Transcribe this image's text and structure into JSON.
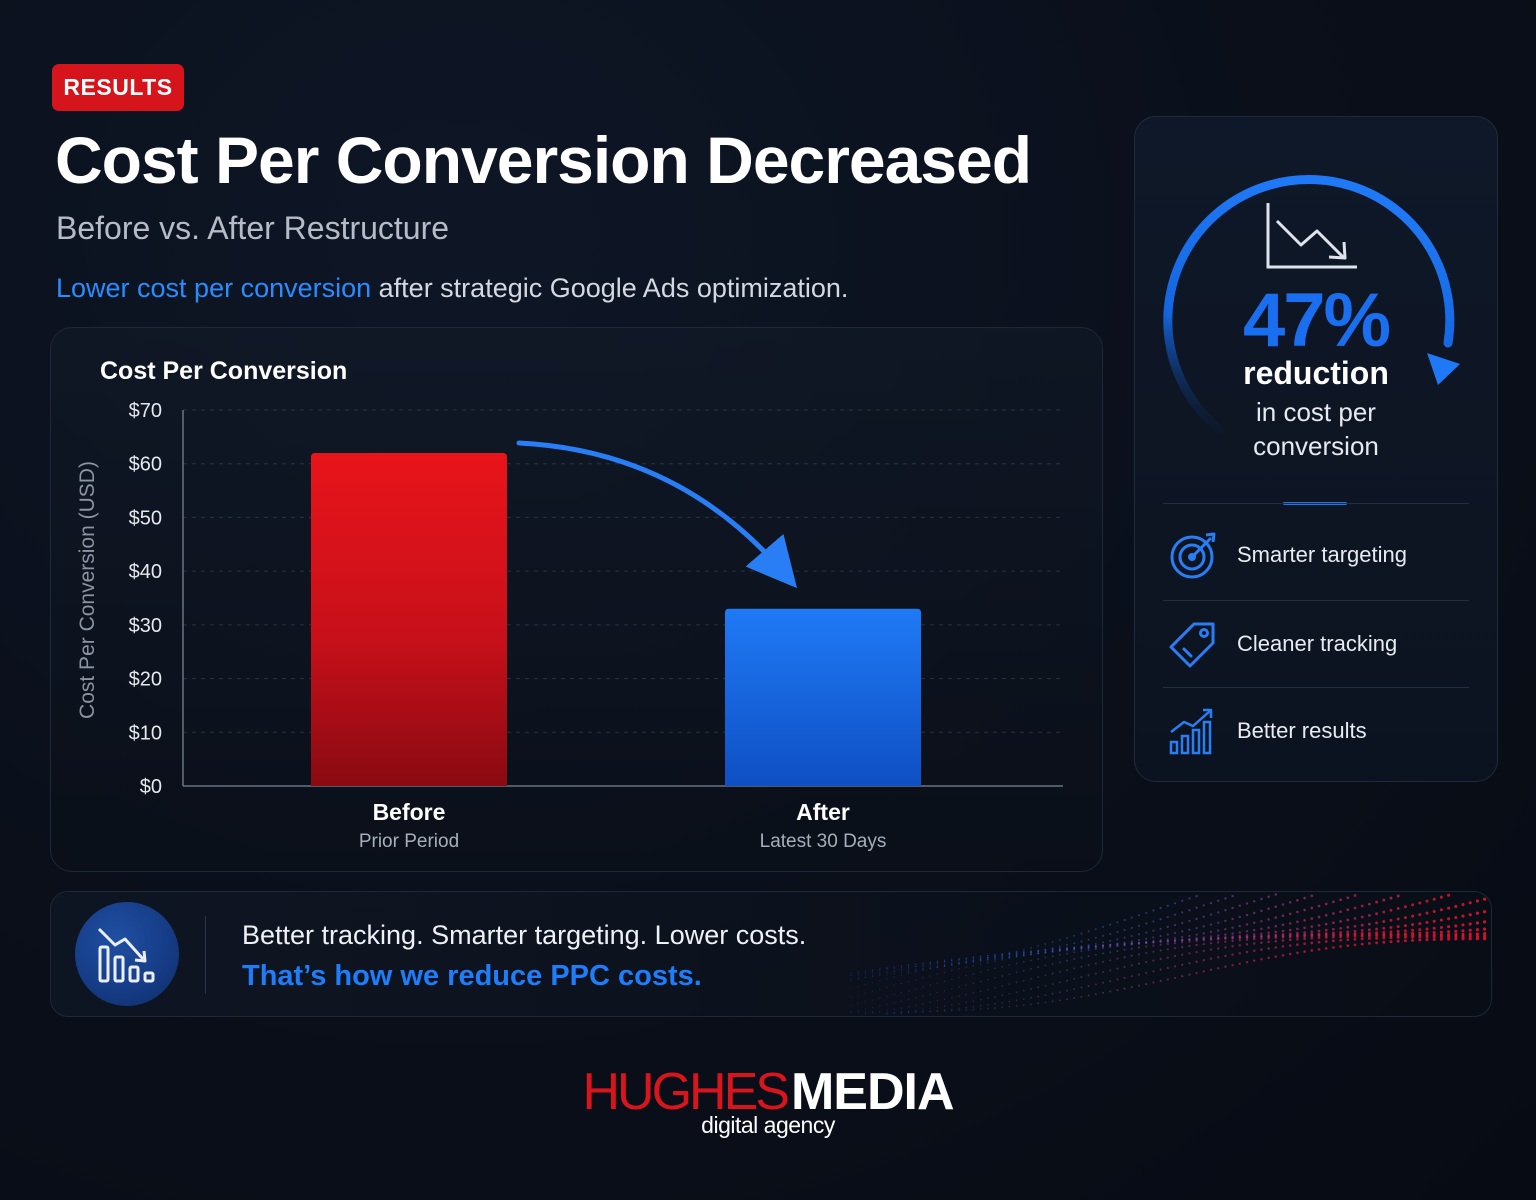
{
  "badge": "RESULTS",
  "title": "Cost Per Conversion Decreased",
  "subtitle": "Before vs. After Restructure",
  "description": {
    "highlight": "Lower cost per conversion",
    "rest": " after strategic Google Ads optimization."
  },
  "chart_data": {
    "type": "bar",
    "title": "Cost Per Conversion",
    "ylabel": "Cost Per Conversion (USD)",
    "xlabel": "",
    "ylim": [
      0,
      70
    ],
    "yticks": [
      0,
      10,
      20,
      30,
      40,
      50,
      60,
      70
    ],
    "ytick_labels": [
      "$0",
      "$10",
      "$20",
      "$30",
      "$40",
      "$50",
      "$60",
      "$70"
    ],
    "categories": [
      "Before",
      "After"
    ],
    "category_sublabels": [
      "Prior Period",
      "Latest 30 Days"
    ],
    "values": [
      62,
      33
    ],
    "bar_colors": [
      "#e0141b",
      "#1f74f0"
    ],
    "grid": true,
    "annotation": "arrow from Before bar to After bar"
  },
  "stat": {
    "value": "47%",
    "label": "reduction",
    "detail_line1": "in cost per",
    "detail_line2": "conversion",
    "color": "#1a6ff0"
  },
  "features": [
    {
      "icon": "target-icon",
      "label": "Smarter targeting"
    },
    {
      "icon": "tag-icon",
      "label": "Cleaner tracking"
    },
    {
      "icon": "growth-chart-icon",
      "label": "Better results"
    }
  ],
  "bottom": {
    "line1": "Better tracking. Smarter targeting. Lower costs.",
    "line2": "That’s how we reduce PPC costs."
  },
  "logo": {
    "part1": "HUGHES",
    "part2": "MEDIA",
    "tagline": "digital agency"
  },
  "colors": {
    "accent_blue": "#1f7dfa",
    "accent_red": "#d6141b",
    "background": "#0a0f1a"
  }
}
